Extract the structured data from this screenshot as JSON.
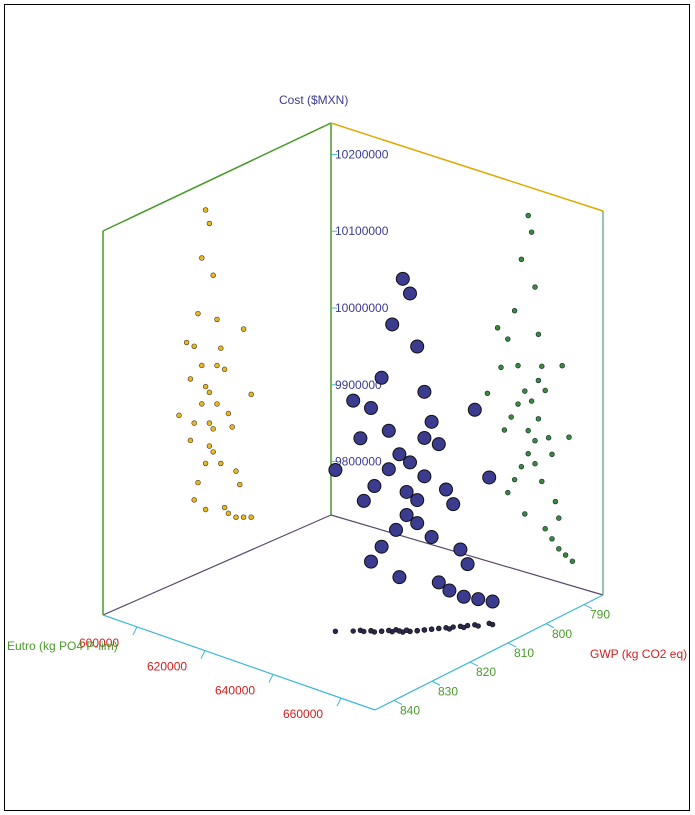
{
  "chart_data": {
    "type": "scatter",
    "title": "",
    "axes": {
      "cost": {
        "label": "Cost ($MXN)",
        "ticks": [
          "9800000",
          "9900000",
          "10000000",
          "10100000",
          "10200000"
        ],
        "range": [
          9750000,
          10250000
        ]
      },
      "eutro": {
        "label": "Eutro (kg PO4 P-lim)",
        "ticks": [
          "600000",
          "620000",
          "640000",
          "660000"
        ],
        "range": [
          590000,
          670000
        ]
      },
      "gwp": {
        "label": "GWP (kg CO2 eq)",
        "ticks": [
          "790",
          "800",
          "810",
          "820",
          "830",
          "840"
        ],
        "range": [
          785,
          845
        ]
      }
    },
    "series": [
      {
        "marker": "large navy sphere",
        "color": "#3b3b8f",
        "points": [
          [
            648000,
            818,
            10210000
          ],
          [
            649000,
            817,
            10190000
          ],
          [
            646000,
            819,
            10150000
          ],
          [
            650000,
            816,
            10120000
          ],
          [
            644000,
            820,
            10080000
          ],
          [
            651000,
            815,
            10060000
          ],
          [
            642000,
            821,
            10040000
          ],
          [
            652000,
            814,
            10020000
          ],
          [
            640000,
            822,
            10000000
          ],
          [
            653000,
            813,
            9990000
          ],
          [
            647000,
            818,
            9980000
          ],
          [
            649000,
            817,
            9970000
          ],
          [
            645000,
            819,
            9960000
          ],
          [
            651000,
            815,
            9950000
          ],
          [
            643000,
            821,
            9940000
          ],
          [
            654000,
            812,
            9930000
          ],
          [
            641000,
            822,
            9920000
          ],
          [
            655000,
            811,
            9910000
          ],
          [
            648000,
            817,
            9900000
          ],
          [
            650000,
            816,
            9890000
          ],
          [
            646000,
            818,
            9880000
          ],
          [
            652000,
            814,
            9870000
          ],
          [
            644000,
            820,
            9860000
          ],
          [
            656000,
            810,
            9850000
          ],
          [
            642000,
            821,
            9840000
          ],
          [
            657000,
            809,
            9830000
          ],
          [
            647000,
            818,
            9820000
          ],
          [
            653000,
            813,
            9810000
          ],
          [
            639000,
            823,
            10050000
          ],
          [
            658000,
            808,
            10030000
          ],
          [
            645000,
            819,
            10010000
          ],
          [
            651000,
            815,
            10000000
          ],
          [
            636000,
            825,
            9960000
          ],
          [
            660000,
            806,
            9940000
          ],
          [
            648000,
            817,
            9930000
          ],
          [
            650000,
            816,
            9920000
          ],
          [
            655000,
            812,
            9800000
          ],
          [
            657000,
            810,
            9790000
          ],
          [
            659000,
            808,
            9785000
          ],
          [
            661000,
            806,
            9780000
          ]
        ]
      }
    ]
  }
}
